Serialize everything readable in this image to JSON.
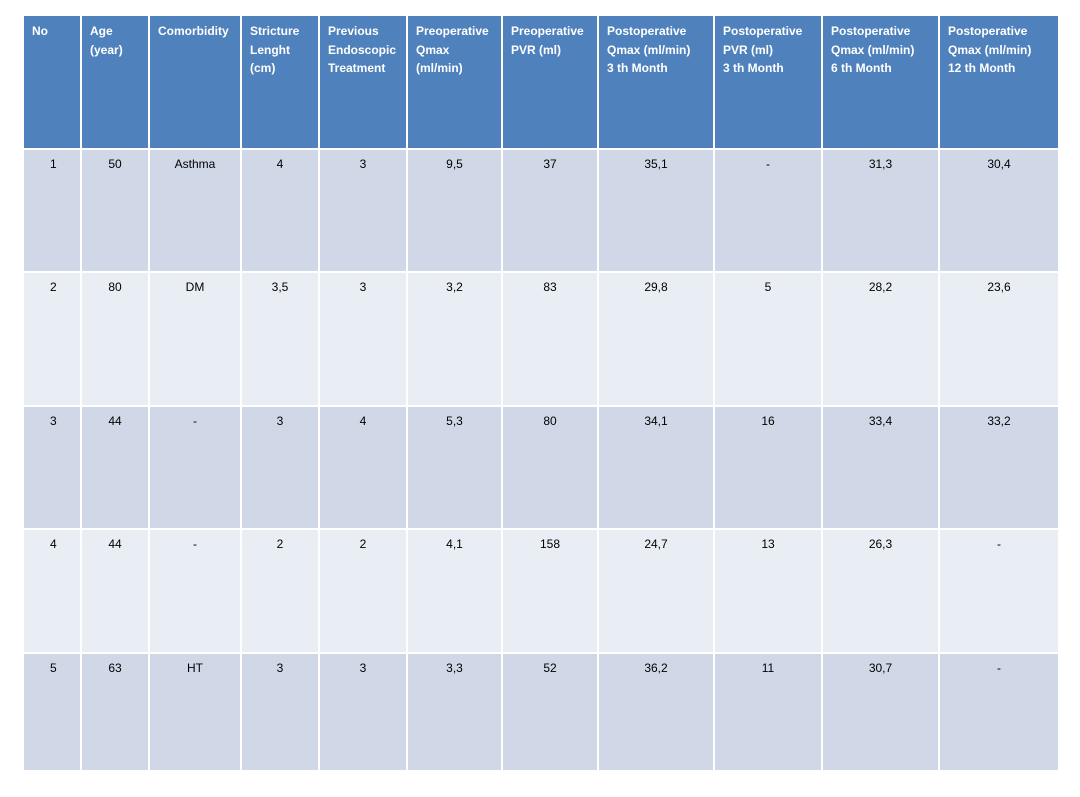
{
  "table": {
    "headers": [
      [
        "No"
      ],
      [
        "Age",
        "(year)"
      ],
      [
        "Comorbidity"
      ],
      [
        "Stricture",
        "Lenght",
        "(cm)"
      ],
      [
        "Previous",
        "Endoscopic",
        "Treatment"
      ],
      [
        "Preoperative",
        "Qmax",
        "(ml/min)"
      ],
      [
        "Preoperative",
        "PVR (ml)"
      ],
      [
        "Postoperative",
        "Qmax (ml/min)",
        "3 th Month"
      ],
      [
        "Postoperative",
        "PVR (ml)",
        "3 th Month"
      ],
      [
        "Postoperative",
        "Qmax (ml/min)",
        "6 th Month"
      ],
      [
        "Postoperative",
        "Qmax (ml/min)",
        "12 th Month"
      ]
    ],
    "rows": [
      [
        "1",
        "50",
        "Asthma",
        "4",
        "3",
        "9,5",
        "37",
        "35,1",
        "-",
        "31,3",
        "30,4"
      ],
      [
        "2",
        "80",
        "DM",
        "3,5",
        "3",
        "3,2",
        "83",
        "29,8",
        "5",
        "28,2",
        "23,6"
      ],
      [
        "3",
        "44",
        "-",
        "3",
        "4",
        "5,3",
        "80",
        "34,1",
        "16",
        "33,4",
        "33,2"
      ],
      [
        "4",
        "44",
        "-",
        "2",
        "2",
        "4,1",
        "158",
        "24,7",
        "13",
        "26,3",
        "-"
      ],
      [
        "5",
        "63",
        "HT",
        "3",
        "3",
        "3,3",
        "52",
        "36,2",
        "11",
        "30,7",
        "-"
      ]
    ]
  },
  "colors": {
    "header_bg": "#4f81bd",
    "row_dark": "#d0d8e8",
    "row_light": "#e9edf4"
  }
}
